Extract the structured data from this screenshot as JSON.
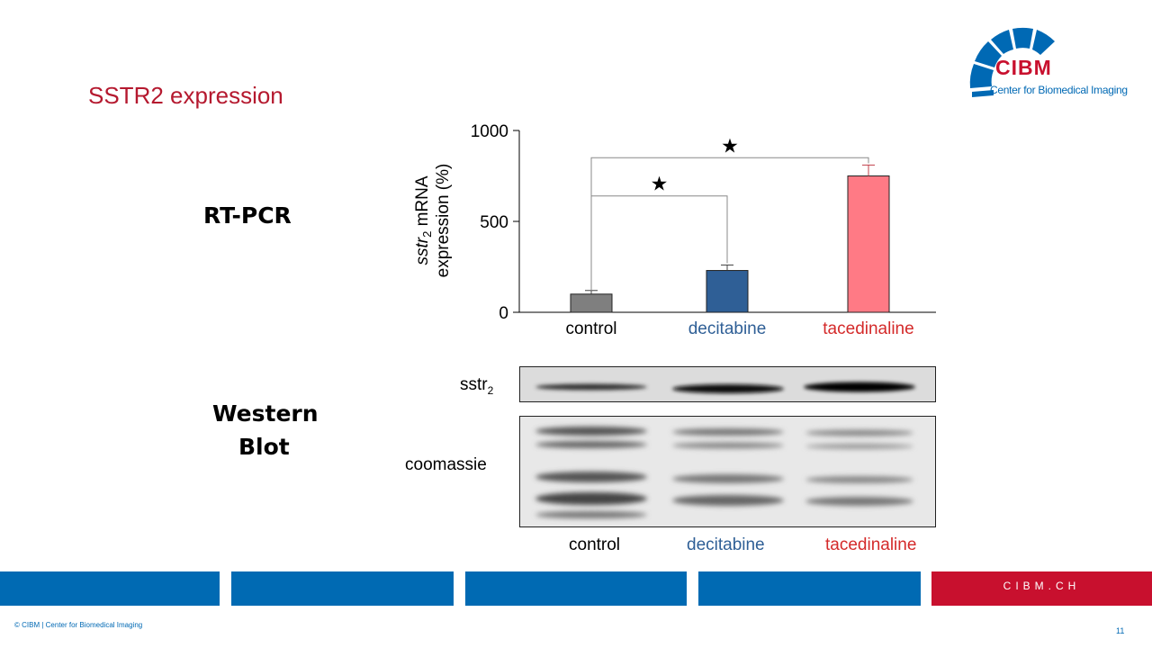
{
  "slide": {
    "title": "SSTR2 expression",
    "rtpcr_label": "RT-PCR",
    "western_blot_label_line1": "Western",
    "western_blot_label_line2": "Blot",
    "page_number": "11",
    "copyright": "© CIBM | Center for Biomedical Imaging",
    "footer_url": "CIBM.CH"
  },
  "logo": {
    "name": "CIBM",
    "subtitle": "Center for Biomedical Imaging",
    "colors": {
      "blue": "#0069b4",
      "red": "#c8102e"
    }
  },
  "chart_data": {
    "type": "bar",
    "categories": [
      "control",
      "decitabine",
      "tacedinaline"
    ],
    "values": [
      100,
      230,
      750
    ],
    "error": [
      20,
      30,
      60
    ],
    "bar_colors": [
      "#7f7f7f",
      "#2f5f96",
      "#ff7a85"
    ],
    "label_colors": [
      "#000000",
      "#2f5f96",
      "#d42a2a"
    ],
    "ylabel_line1": "sstr2 mRNA",
    "ylabel_line2": "expression (%)",
    "ylim": [
      0,
      1000
    ],
    "yticks": [
      "0",
      "500",
      "1000"
    ],
    "yticks_values": [
      0,
      500,
      1000
    ],
    "significance": [
      {
        "from": "control",
        "to": "decitabine",
        "symbol": "★"
      },
      {
        "from": "control",
        "to": "tacedinaline",
        "symbol": "★"
      }
    ]
  },
  "western_blot": {
    "band_labels": {
      "sstr": "sstr",
      "sstr_sub": "2",
      "coomassie": "coomassie"
    },
    "lanes": [
      "control",
      "decitabine",
      "tacedinaline"
    ]
  }
}
